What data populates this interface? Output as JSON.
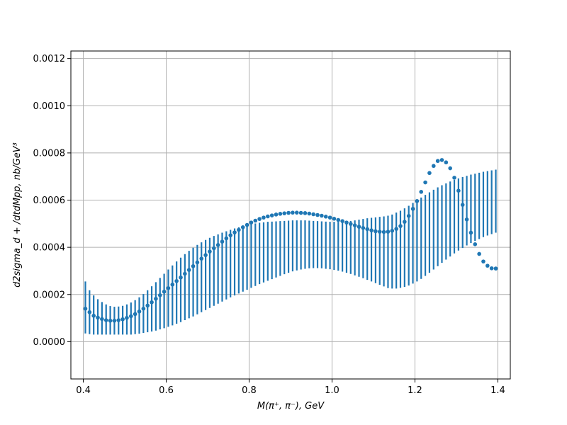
{
  "chart_data": {
    "type": "scatter",
    "title": "",
    "xlabel": "M(π⁺, π⁻), GeV",
    "ylabel": "d2sigma_d + /dtdMpp, nb/GeV³",
    "xlim": [
      0.37,
      1.43
    ],
    "ylim": [
      -0.000158,
      0.001232
    ],
    "grid": true,
    "marker_color": "#1f77b4",
    "x_ticks": [
      0.4,
      0.6,
      0.8,
      1.0,
      1.2,
      1.4
    ],
    "x_tick_labels": [
      "0.4",
      "0.6",
      "0.8",
      "1.0",
      "1.2",
      "1.4"
    ],
    "y_ticks": [
      0.0,
      0.0002,
      0.0004,
      0.0006,
      0.0008,
      0.001,
      0.0012
    ],
    "y_tick_labels": [
      "0.0000",
      "0.0002",
      "0.0004",
      "0.0006",
      "0.0008",
      "0.0010",
      "0.0012"
    ],
    "series": [
      {
        "x": [
          0.405,
          0.415,
          0.425,
          0.435,
          0.445,
          0.455,
          0.465,
          0.475,
          0.485,
          0.495,
          0.505,
          0.515,
          0.525,
          0.535,
          0.545,
          0.555,
          0.565,
          0.575,
          0.585,
          0.595,
          0.605,
          0.615,
          0.625,
          0.635,
          0.645,
          0.655,
          0.665,
          0.675,
          0.685,
          0.695,
          0.705,
          0.715,
          0.725,
          0.735,
          0.745,
          0.755,
          0.765,
          0.775,
          0.785,
          0.795,
          0.805,
          0.815,
          0.825,
          0.835,
          0.845,
          0.855,
          0.865,
          0.875,
          0.885,
          0.895,
          0.905,
          0.915,
          0.925,
          0.935,
          0.945,
          0.955,
          0.965,
          0.975,
          0.985,
          0.995,
          1.005,
          1.015,
          1.025,
          1.035,
          1.045,
          1.055,
          1.065,
          1.075,
          1.085,
          1.095,
          1.105,
          1.115,
          1.125,
          1.135,
          1.145,
          1.155,
          1.165,
          1.175,
          1.185,
          1.195,
          1.205,
          1.215,
          1.225,
          1.235,
          1.245,
          1.255,
          1.265,
          1.275,
          1.285,
          1.295,
          1.305,
          1.315,
          1.325,
          1.335,
          1.345,
          1.355,
          1.365,
          1.375,
          1.385,
          1.395
        ],
        "y": [
          0.00014,
          0.000125,
          0.00011,
          0.000102,
          9.6e-05,
          9.1e-05,
          8.9e-05,
          8.9e-05,
          9.1e-05,
          9.5e-05,
          0.000101,
          0.000108,
          0.000117,
          0.000128,
          0.00014,
          0.000153,
          0.000167,
          0.000182,
          0.000197,
          0.000212,
          0.000227,
          0.000242,
          0.000257,
          0.000272,
          0.000288,
          0.000304,
          0.00032,
          0.000336,
          0.000352,
          0.000367,
          0.000382,
          0.000396,
          0.00041,
          0.000424,
          0.000438,
          0.000451,
          0.000463,
          0.000474,
          0.000485,
          0.000495,
          0.000505,
          0.000513,
          0.00052,
          0.000526,
          0.000531,
          0.000535,
          0.000539,
          0.000542,
          0.000544,
          0.000546,
          0.000547,
          0.000547,
          0.000546,
          0.000545,
          0.000543,
          0.00054,
          0.000537,
          0.000534,
          0.00053,
          0.000526,
          0.000521,
          0.000516,
          0.000511,
          0.000505,
          0.000499,
          0.000493,
          0.000487,
          0.000482,
          0.000477,
          0.000472,
          0.000468,
          0.000466,
          0.000465,
          0.000466,
          0.00047,
          0.000478,
          0.00049,
          0.000508,
          0.000533,
          0.000563,
          0.000596,
          0.000635,
          0.000675,
          0.000715,
          0.000745,
          0.000766,
          0.00077,
          0.00076,
          0.000735,
          0.000695,
          0.00064,
          0.00058,
          0.000518,
          0.000462,
          0.000413,
          0.000372,
          0.00034,
          0.000322,
          0.000311,
          0.00031
        ],
        "yerr_low": [
          3.5e-05,
          3.2e-05,
          3e-05,
          3e-05,
          3e-05,
          3e-05,
          3e-05,
          3e-05,
          3e-05,
          3e-05,
          3e-05,
          3e-05,
          3.2e-05,
          3.4e-05,
          3.7e-05,
          4e-05,
          4.3e-05,
          4.7e-05,
          5.2e-05,
          5.7e-05,
          6.3e-05,
          6.9e-05,
          7.6e-05,
          8.3e-05,
          9.1e-05,
          9.9e-05,
          0.000107,
          0.000116,
          0.000125,
          0.000134,
          0.000143,
          0.000152,
          0.000161,
          0.00017,
          0.000179,
          0.000188,
          0.000196,
          0.000204,
          0.000212,
          0.00022,
          0.000228,
          0.000236,
          0.000244,
          0.000251,
          0.000258,
          0.000265,
          0.000272,
          0.000279,
          0.000286,
          0.000292,
          0.000298,
          0.000302,
          0.000306,
          0.000309,
          0.000311,
          0.000312,
          0.000312,
          0.000311,
          0.000309,
          0.000307,
          0.000304,
          0.000301,
          0.000297,
          0.000292,
          0.000287,
          0.000281,
          0.000275,
          0.000269,
          0.000262,
          0.000255,
          0.000248,
          0.000241,
          0.000234,
          0.000227,
          0.000225,
          0.000225,
          0.000228,
          0.000232,
          0.000238,
          0.000246,
          0.000255,
          0.000266,
          0.000279,
          0.000292,
          0.000306,
          0.00032,
          0.000334,
          0.000348,
          0.000361,
          0.000374,
          0.000386,
          0.000397,
          0.000408,
          0.000418,
          0.000427,
          0.000435,
          0.000443,
          0.00045,
          0.000456,
          0.000462
        ],
        "yerr_high": [
          0.000255,
          0.000218,
          0.000196,
          0.00018,
          0.000168,
          0.000158,
          0.000151,
          0.000148,
          0.000149,
          0.000152,
          0.000158,
          0.000166,
          0.000176,
          0.000188,
          0.000202,
          0.000218,
          0.000235,
          0.000252,
          0.00027,
          0.000288,
          0.000306,
          0.000323,
          0.00034,
          0.000356,
          0.000371,
          0.000385,
          0.000398,
          0.00041,
          0.000421,
          0.000431,
          0.00044,
          0.000448,
          0.000455,
          0.000462,
          0.000468,
          0.000474,
          0.00048,
          0.000485,
          0.00049,
          0.000494,
          0.000498,
          0.000501,
          0.000504,
          0.000506,
          0.000508,
          0.000509,
          0.00051,
          0.000511,
          0.000512,
          0.000513,
          0.000514,
          0.000514,
          0.000514,
          0.000514,
          0.000513,
          0.000512,
          0.000511,
          0.00051,
          0.000509,
          0.000508,
          0.000508,
          0.000508,
          0.000509,
          0.00051,
          0.000512,
          0.000514,
          0.000517,
          0.00052,
          0.000523,
          0.000525,
          0.000527,
          0.000529,
          0.000531,
          0.000534,
          0.000539,
          0.000547,
          0.000555,
          0.000565,
          0.000576,
          0.000588,
          0.0006,
          0.000611,
          0.000622,
          0.000633,
          0.000644,
          0.000654,
          0.000663,
          0.000671,
          0.000679,
          0.000686,
          0.000692,
          0.000698,
          0.000703,
          0.000708,
          0.000712,
          0.000716,
          0.00072,
          0.000723,
          0.000726,
          0.000729
        ]
      }
    ]
  }
}
